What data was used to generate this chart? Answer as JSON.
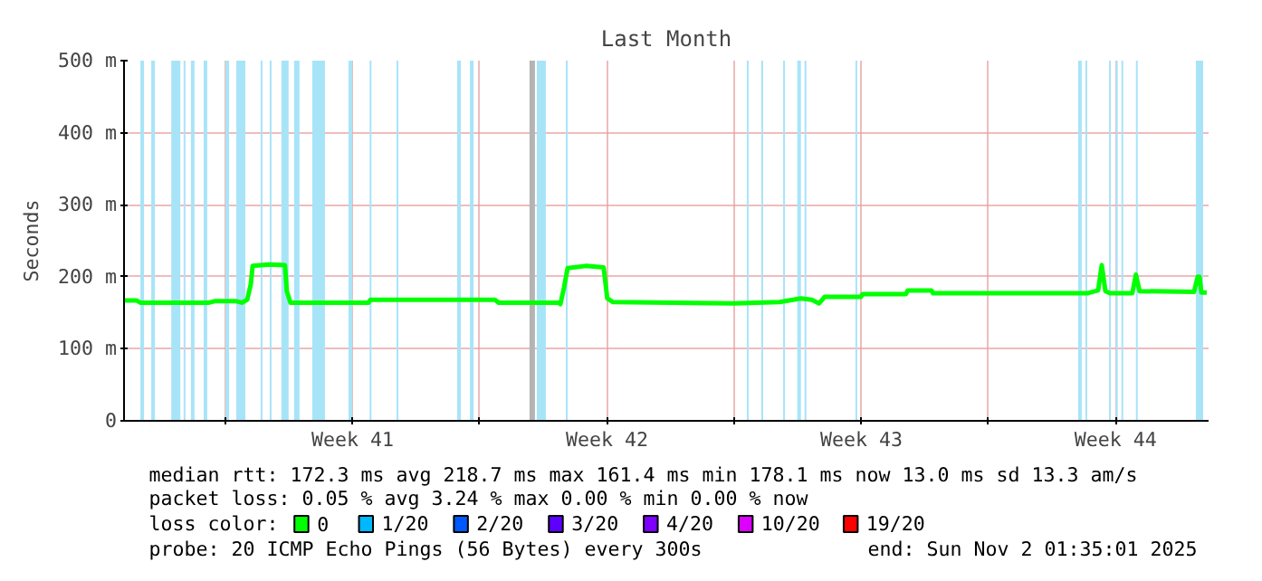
{
  "chart_data": {
    "type": "line",
    "title": "Last Month",
    "ylabel": "Seconds",
    "x": [
      "2025-10-03T05:00",
      "2025-10-03T13:24",
      "2025-10-03T15:48",
      "2025-10-05T13:10",
      "2025-10-05T16:46",
      "2025-10-06T07:10",
      "2025-10-06T10:46",
      "2025-10-06T14:22",
      "2025-10-06T16:46",
      "2025-10-06T17:58",
      "2025-10-07T04:46",
      "2025-10-07T15:19",
      "2025-10-07T16:31",
      "2025-10-07T18:55",
      "2025-10-09T22:31",
      "2025-10-09T23:43",
      "2025-10-13T10:02",
      "2025-10-13T12:26",
      "2025-10-15T04:02",
      "2025-10-15T05:14",
      "2025-10-15T07:38",
      "2025-10-15T10:02",
      "2025-10-15T22:02",
      "2025-10-16T09:48",
      "2025-10-16T12:12",
      "2025-10-16T15:48",
      "2025-10-19T23:58",
      "2025-10-21T05:58",
      "2025-10-21T20:07",
      "2025-10-22T03:19",
      "2025-10-22T08:07",
      "2025-10-22T11:43",
      "2025-10-23T11:43",
      "2025-10-23T12:55",
      "2025-10-24T17:29",
      "2025-10-24T18:41",
      "2025-10-25T10:17",
      "2025-10-25T11:29",
      "2025-10-29T17:14",
      "2025-10-30T00:26",
      "2025-10-30T02:50",
      "2025-10-30T05:14",
      "2025-10-30T08:36",
      "2025-10-30T23:00",
      "2025-10-31T01:24",
      "2025-10-31T03:48",
      "2025-11-01T15:48",
      "2025-11-01T18:12",
      "2025-11-01T19:24",
      "2025-11-01T20:36",
      "2025-11-02T00:12"
    ],
    "series": [
      {
        "name": "0",
        "color": "#00ff00",
        "values": [
          167,
          167,
          164,
          164,
          166,
          166,
          164,
          168,
          190,
          215,
          217,
          216,
          180,
          164,
          164,
          168,
          168,
          164,
          164,
          162,
          185,
          212,
          215,
          213,
          170,
          165,
          163,
          165,
          170,
          168,
          163,
          172,
          172,
          176,
          176,
          181,
          181,
          177,
          177,
          181,
          216,
          180,
          177,
          177,
          203,
          180,
          179,
          200,
          200,
          178,
          178
        ]
      },
      {
        "name": "1/20",
        "color": "#00b8ff",
        "values": [
          null,
          null,
          null,
          null,
          null,
          null,
          null,
          null,
          null,
          null,
          null,
          null,
          null,
          null,
          null,
          null,
          null,
          null,
          null,
          null,
          null,
          null,
          null,
          null,
          null,
          null,
          null,
          null,
          null,
          null,
          null,
          null,
          null,
          null,
          null,
          null,
          null,
          null,
          null,
          null,
          null,
          null,
          null,
          null,
          null,
          null,
          null,
          null,
          null,
          null,
          null
        ]
      },
      {
        "name": "2/20",
        "color": "#0059ff",
        "values": [
          null,
          null,
          null,
          null,
          null,
          null,
          null,
          null,
          null,
          null,
          null,
          null,
          null,
          null,
          null,
          null,
          null,
          null,
          null,
          null,
          null,
          null,
          null,
          null,
          null,
          null,
          null,
          null,
          null,
          null,
          null,
          null,
          null,
          null,
          null,
          null,
          null,
          null,
          null,
          null,
          null,
          null,
          null,
          null,
          null,
          null,
          null,
          null,
          null,
          null,
          null
        ]
      },
      {
        "name": "3/20",
        "color": "#5e00ff",
        "values": [
          null,
          null,
          null,
          null,
          null,
          null,
          null,
          null,
          null,
          null,
          null,
          null,
          null,
          null,
          null,
          null,
          null,
          null,
          null,
          null,
          null,
          null,
          null,
          null,
          null,
          null,
          null,
          null,
          null,
          null,
          null,
          null,
          null,
          null,
          null,
          null,
          null,
          null,
          null,
          null,
          null,
          null,
          null,
          null,
          null,
          null,
          null,
          null,
          null,
          null,
          null
        ]
      },
      {
        "name": "4/20",
        "color": "#7e00ff",
        "values": [
          null,
          null,
          null,
          null,
          null,
          null,
          null,
          null,
          null,
          null,
          null,
          null,
          null,
          null,
          null,
          null,
          null,
          null,
          null,
          null,
          null,
          null,
          null,
          null,
          null,
          null,
          null,
          null,
          null,
          null,
          null,
          null,
          null,
          null,
          null,
          null,
          null,
          null,
          null,
          null,
          null,
          null,
          null,
          null,
          null,
          null,
          null,
          null,
          null,
          null,
          null
        ]
      },
      {
        "name": "10/20",
        "color": "#dd00ff",
        "values": [
          null,
          null,
          null,
          null,
          null,
          null,
          null,
          null,
          null,
          null,
          null,
          null,
          null,
          null,
          null,
          null,
          null,
          null,
          null,
          null,
          null,
          null,
          null,
          null,
          null,
          null,
          null,
          null,
          null,
          null,
          null,
          null,
          null,
          null,
          null,
          null,
          null,
          null,
          null,
          null,
          null,
          null,
          null,
          null,
          null,
          null,
          null,
          null,
          null,
          null,
          null
        ]
      },
      {
        "name": "19/20",
        "color": "#ff0000",
        "values": [
          null,
          null,
          null,
          null,
          null,
          null,
          null,
          null,
          null,
          null,
          null,
          null,
          null,
          null,
          null,
          null,
          null,
          null,
          null,
          null,
          null,
          null,
          null,
          null,
          null,
          null,
          null,
          null,
          null,
          null,
          null,
          null,
          null,
          null,
          null,
          null,
          null,
          null,
          null,
          null,
          null,
          null,
          null,
          null,
          null,
          null,
          null,
          null,
          null,
          null,
          null
        ]
      }
    ],
    "legend": "bottom",
    "legend_title": "loss color:",
    "xlim": [
      "2025-10-03T05:00",
      "2025-11-02T01:24"
    ],
    "xticks": [
      {
        "value": "2025-10-06",
        "label": null
      },
      {
        "value": "2025-10-09T12:00",
        "label": "Week 41"
      },
      {
        "value": "2025-10-13",
        "label": null
      },
      {
        "value": "2025-10-16T12:00",
        "label": "Week 42"
      },
      {
        "value": "2025-10-20",
        "label": null
      },
      {
        "value": "2025-10-23T12:00",
        "label": "Week 43"
      },
      {
        "value": "2025-10-27",
        "label": null
      },
      {
        "value": "2025-10-30T12:00",
        "label": "Week 44"
      }
    ],
    "ylim": [
      0,
      500
    ],
    "yticks": [
      0,
      {
        "value": 100,
        "label": "100 m"
      },
      {
        "value": 200,
        "label": "200 m"
      },
      {
        "value": 300,
        "label": "300 m"
      },
      {
        "value": 400,
        "label": "400 m"
      },
      {
        "value": 500,
        "label": "500 m"
      }
    ],
    "grid": true,
    "bands": [
      {
        "axis": "x",
        "from": "2025-10-03T15:48",
        "to": "2025-10-03T18:12",
        "color": "#a8e4f8"
      },
      {
        "axis": "x",
        "from": "2025-10-03T23:00",
        "to": "2025-10-04T01:24",
        "color": "#a8e4f8"
      },
      {
        "axis": "x",
        "from": "2025-10-04T12:12",
        "to": "2025-10-04T18:12",
        "color": "#a8e4f8"
      },
      {
        "axis": "x",
        "from": "2025-10-04T20:22",
        "to": "2025-10-04T21:34",
        "color": "#a8e4f8"
      },
      {
        "axis": "x",
        "from": "2025-10-05T01:10",
        "to": "2025-10-05T03:34",
        "color": "#a8e4f8"
      },
      {
        "axis": "x",
        "from": "2025-10-05T09:34",
        "to": "2025-10-05T11:58",
        "color": "#a8e4f8"
      },
      {
        "axis": "x",
        "from": "2025-10-06T00:00",
        "to": "2025-10-06T02:24",
        "color": "#a8e4f8"
      },
      {
        "axis": "x",
        "from": "2025-10-06T07:10",
        "to": "2025-10-06T13:10",
        "color": "#a8e4f8"
      },
      {
        "axis": "x",
        "from": "2025-10-06T23:14",
        "to": "2025-10-07T00:26",
        "color": "#a8e4f8"
      },
      {
        "axis": "x",
        "from": "2025-10-07T05:14",
        "to": "2025-10-07T06:26",
        "color": "#a8e4f8"
      },
      {
        "axis": "x",
        "from": "2025-10-07T12:55",
        "to": "2025-10-07T17:43",
        "color": "#a8e4f8"
      },
      {
        "axis": "x",
        "from": "2025-10-07T21:19",
        "to": "2025-10-08T00:55",
        "color": "#a8e4f8"
      },
      {
        "axis": "x",
        "from": "2025-10-08T09:19",
        "to": "2025-10-08T17:43",
        "color": "#a8e4f8"
      },
      {
        "axis": "x",
        "from": "2025-10-09T09:19",
        "to": "2025-10-09T11:43",
        "color": "#a8e4f8"
      },
      {
        "axis": "x",
        "from": "2025-10-09T23:14",
        "to": "2025-10-10T00:26",
        "color": "#a8e4f8"
      },
      {
        "axis": "x",
        "from": "2025-10-10T17:00",
        "to": "2025-10-10T18:12",
        "color": "#a8e4f8"
      },
      {
        "axis": "x",
        "from": "2025-10-12T09:05",
        "to": "2025-10-12T11:29",
        "color": "#a8e4f8"
      },
      {
        "axis": "x",
        "from": "2025-10-12T17:29",
        "to": "2025-10-12T19:53",
        "color": "#a8e4f8"
      },
      {
        "axis": "x",
        "from": "2025-10-14T08:50",
        "to": "2025-10-14T12:26",
        "color": "#b4b4b4"
      },
      {
        "axis": "x",
        "from": "2025-10-14T13:38",
        "to": "2025-10-14T19:38",
        "color": "#a8e4f8"
      },
      {
        "axis": "x",
        "from": "2025-10-15T08:50",
        "to": "2025-10-15T10:02",
        "color": "#a8e4f8"
      },
      {
        "axis": "x",
        "from": "2025-10-20T08:22",
        "to": "2025-10-20T09:34",
        "color": "#a8e4f8"
      },
      {
        "axis": "x",
        "from": "2025-10-20T17:58",
        "to": "2025-10-20T19:10",
        "color": "#a8e4f8"
      },
      {
        "axis": "x",
        "from": "2025-10-21T08:22",
        "to": "2025-10-21T09:34",
        "color": "#a8e4f8"
      },
      {
        "axis": "x",
        "from": "2025-10-21T17:43",
        "to": "2025-10-21T20:07",
        "color": "#a8e4f8"
      },
      {
        "axis": "x",
        "from": "2025-10-21T22:31",
        "to": "2025-10-21T23:43",
        "color": "#a8e4f8"
      },
      {
        "axis": "x",
        "from": "2025-10-23T08:07",
        "to": "2025-10-23T09:19",
        "color": "#a8e4f8"
      },
      {
        "axis": "x",
        "from": "2025-10-29T11:14",
        "to": "2025-10-29T13:38",
        "color": "#a8e4f8"
      },
      {
        "axis": "x",
        "from": "2025-10-29T16:02",
        "to": "2025-10-29T17:14",
        "color": "#a8e4f8"
      },
      {
        "axis": "x",
        "from": "2025-10-30T07:38",
        "to": "2025-10-30T08:50",
        "color": "#a8e4f8"
      },
      {
        "axis": "x",
        "from": "2025-10-30T12:12",
        "to": "2025-10-30T13:24",
        "color": "#a8e4f8"
      },
      {
        "axis": "x",
        "from": "2025-10-30T15:48",
        "to": "2025-10-30T17:00",
        "color": "#a8e4f8"
      },
      {
        "axis": "x",
        "from": "2025-10-31T01:24",
        "to": "2025-10-31T02:36",
        "color": "#a8e4f8"
      },
      {
        "axis": "x",
        "from": "2025-11-01T17:00",
        "to": "2025-11-01T21:48",
        "color": "#a8e4f8"
      }
    ],
    "annotations": [
      "median rtt:  172.3 ms avg  218.7 ms max  161.4 ms min  178.1 ms now  13.0 ms sd  13.3   am/s",
      "packet loss: 0.05 % avg  3.24 % max  0.00 % min  0.00 % now",
      "probe:        20 ICMP Echo Pings (56 Bytes) every 300s",
      "end: Sun Nov  2 01:35:01 2025"
    ]
  }
}
